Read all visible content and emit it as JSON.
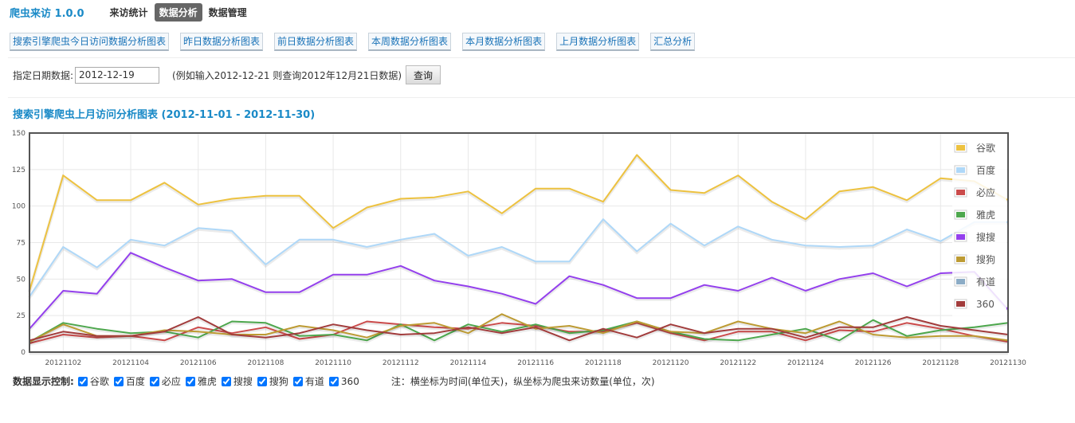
{
  "app": {
    "title": "爬虫来访 1.0.0"
  },
  "nav": [
    {
      "label": "来访统计",
      "active": false
    },
    {
      "label": "数据分析",
      "active": true
    },
    {
      "label": "数据管理",
      "active": false
    }
  ],
  "report_buttons": [
    "搜索引擎爬虫今日访问数据分析图表",
    "昨日数据分析图表",
    "前日数据分析图表",
    "本周数据分析图表",
    "本月数据分析图表",
    "上月数据分析图表",
    "汇总分析"
  ],
  "date_query": {
    "label": "指定日期数据:",
    "value": "2012-12-19",
    "hint": "(例如输入2012-12-21 则查询2012年12月21日数据)",
    "button": "查询"
  },
  "chart_title": "搜索引擎爬虫上月访问分析图表 (2012-11-01 - 2012-11-30)",
  "chart_data": {
    "type": "line",
    "title": "搜索引擎爬虫上月访问分析图表 (2012-11-01 - 2012-11-30)",
    "xlabel": "",
    "ylabel": "",
    "ylim": [
      0,
      150
    ],
    "yticks": [
      0,
      25,
      50,
      75,
      100,
      125,
      150
    ],
    "x": [
      "20121101",
      "20121102",
      "20121103",
      "20121104",
      "20121105",
      "20121106",
      "20121107",
      "20121108",
      "20121109",
      "20121110",
      "20121111",
      "20121112",
      "20121113",
      "20121114",
      "20121115",
      "20121116",
      "20121117",
      "20121118",
      "20121119",
      "20121120",
      "20121121",
      "20121122",
      "20121123",
      "20121124",
      "20121125",
      "20121126",
      "20121127",
      "20121128",
      "20121129",
      "20121130"
    ],
    "xtick_labels": [
      "20121102",
      "20121104",
      "20121106",
      "20121108",
      "20121110",
      "20121112",
      "20121114",
      "20121116",
      "20121118",
      "20121120",
      "20121122",
      "20121124",
      "20121126",
      "20121128",
      "20121130"
    ],
    "grid": true,
    "legend_position": "right",
    "series": [
      {
        "name": "谷歌",
        "color": "#edc240",
        "values": [
          42,
          121,
          104,
          104,
          116,
          101,
          105,
          107,
          107,
          85,
          99,
          105,
          106,
          110,
          95,
          112,
          112,
          103,
          135,
          111,
          109,
          121,
          103,
          91,
          110,
          113,
          104,
          119,
          117,
          104
        ]
      },
      {
        "name": "百度",
        "color": "#afd8f8",
        "values": [
          38,
          72,
          58,
          77,
          73,
          85,
          83,
          60,
          77,
          77,
          72,
          77,
          81,
          66,
          72,
          62,
          62,
          91,
          69,
          88,
          73,
          86,
          77,
          73,
          72,
          73,
          84,
          76,
          89,
          89
        ]
      },
      {
        "name": "必应",
        "color": "#cb4b4b",
        "values": [
          6,
          12,
          10,
          11,
          8,
          17,
          13,
          17,
          9,
          12,
          21,
          19,
          17,
          16,
          20,
          18,
          14,
          14,
          20,
          13,
          8,
          14,
          14,
          8,
          15,
          14,
          20,
          16,
          11,
          7
        ]
      },
      {
        "name": "雅虎",
        "color": "#4da74d",
        "values": [
          7,
          20,
          16,
          13,
          14,
          10,
          21,
          20,
          11,
          12,
          8,
          19,
          8,
          19,
          14,
          19,
          13,
          15,
          21,
          14,
          9,
          8,
          12,
          16,
          8,
          22,
          11,
          15,
          17,
          20
        ]
      },
      {
        "name": "搜搜",
        "color": "#9440ed",
        "values": [
          16,
          42,
          40,
          68,
          58,
          49,
          50,
          41,
          41,
          53,
          53,
          59,
          49,
          45,
          40,
          33,
          52,
          46,
          37,
          37,
          46,
          42,
          51,
          42,
          50,
          54,
          45,
          54,
          55,
          29
        ]
      },
      {
        "name": "搜狗",
        "color": "#bd9b33",
        "values": [
          7,
          19,
          11,
          11,
          15,
          14,
          12,
          12,
          18,
          15,
          10,
          18,
          20,
          13,
          26,
          16,
          18,
          13,
          21,
          14,
          13,
          21,
          16,
          13,
          21,
          12,
          10,
          11,
          11,
          8
        ]
      },
      {
        "name": "有道",
        "color": "#8cacc6",
        "values": [
          0,
          0,
          0,
          0,
          0,
          0,
          0,
          0,
          0,
          0,
          0,
          0,
          0,
          0,
          0,
          0,
          0,
          0,
          0,
          0,
          0,
          0,
          0,
          0,
          0,
          0,
          0,
          0,
          0,
          0
        ]
      },
      {
        "name": "360",
        "color": "#a23c3c",
        "values": [
          8,
          14,
          11,
          11,
          14,
          24,
          12,
          10,
          13,
          19,
          15,
          12,
          13,
          17,
          13,
          17,
          8,
          16,
          10,
          19,
          13,
          16,
          16,
          10,
          17,
          17,
          24,
          18,
          15,
          12
        ]
      }
    ]
  },
  "controls": {
    "label": "数据显示控制:",
    "items": [
      {
        "label": "谷歌",
        "checked": true
      },
      {
        "label": "百度",
        "checked": true
      },
      {
        "label": "必应",
        "checked": true
      },
      {
        "label": "雅虎",
        "checked": true
      },
      {
        "label": "搜搜",
        "checked": true
      },
      {
        "label": "搜狗",
        "checked": true
      },
      {
        "label": "有道",
        "checked": true
      },
      {
        "label": "360",
        "checked": true
      }
    ],
    "note": "注：横坐标为时间(单位天)，纵坐标为爬虫来访数量(单位，次)"
  }
}
